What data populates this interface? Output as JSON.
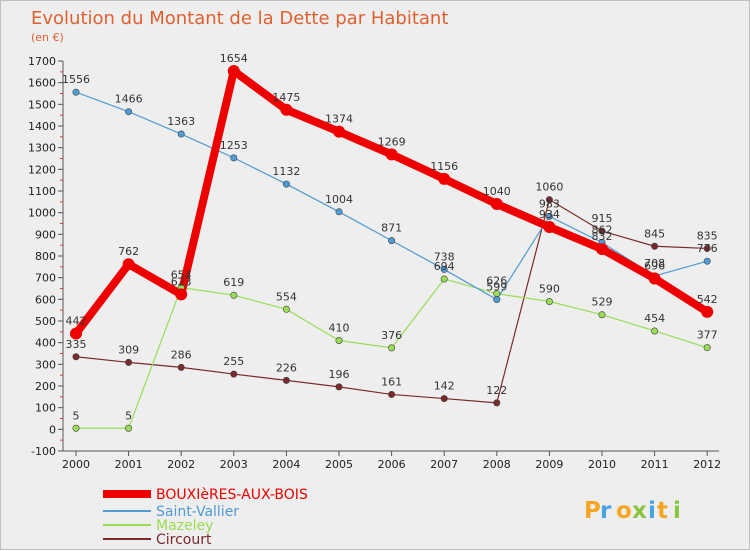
{
  "chart_data": {
    "type": "line",
    "title": "Evolution du Montant de la Dette par Habitant",
    "unit_label": "(en €)",
    "x": [
      "2000",
      "2001",
      "2002",
      "2003",
      "2004",
      "2005",
      "2006",
      "2007",
      "2008",
      "2009",
      "2010",
      "2011",
      "2012"
    ],
    "ylim": [
      -100,
      1700
    ],
    "yticks": [
      -100,
      0,
      100,
      200,
      300,
      400,
      500,
      600,
      700,
      800,
      900,
      1000,
      1100,
      1200,
      1300,
      1400,
      1500,
      1600,
      1700
    ],
    "grid": false,
    "series": [
      {
        "name": "BOUXIèRES-AUX-BOIS",
        "color": "#ee0000",
        "values": [
          442,
          762,
          623,
          1654,
          1475,
          1374,
          1269,
          1156,
          1040,
          934,
          832,
          696,
          542
        ]
      },
      {
        "name": "Saint-Vallier",
        "color": "#4f9bd4",
        "values": [
          1556,
          1466,
          1363,
          1253,
          1132,
          1004,
          871,
          738,
          599,
          983,
          862,
          708,
          776
        ]
      },
      {
        "name": "Mazeley",
        "color": "#99dd55",
        "values": [
          5,
          5,
          654,
          619,
          554,
          410,
          376,
          694,
          626,
          590,
          529,
          454,
          377
        ]
      },
      {
        "name": "Circourt",
        "color": "#7a2a2a",
        "values": [
          335,
          309,
          286,
          255,
          226,
          196,
          161,
          142,
          122,
          1060,
          915,
          845,
          835
        ]
      }
    ]
  },
  "logo": {
    "text": "Proxiti"
  }
}
